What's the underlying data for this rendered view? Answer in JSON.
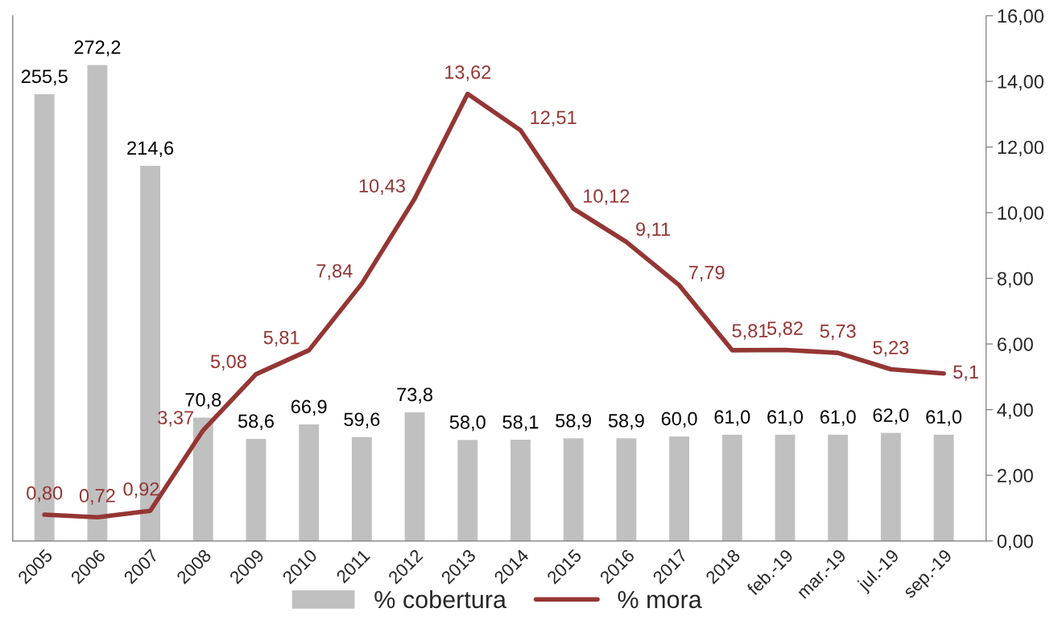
{
  "chart_data": {
    "type": "bar",
    "categories": [
      "2005",
      "2006",
      "2007",
      "2008",
      "2009",
      "2010",
      "2011",
      "2012",
      "2013",
      "2014",
      "2015",
      "2016",
      "2017",
      "2018",
      "feb.-19",
      "mar.-19",
      "jul.-19",
      "sep.-19"
    ],
    "series": [
      {
        "name": "% cobertura",
        "color": "#c0c0c0",
        "values": [
          255.5,
          272.2,
          214.6,
          70.8,
          58.6,
          66.9,
          59.6,
          73.8,
          58.0,
          58.1,
          58.9,
          58.9,
          60.0,
          61.0,
          61.0,
          61.0,
          62.0,
          61.0
        ],
        "value_labels": [
          "255,5",
          "272,2",
          "214,6",
          "70,8",
          "58,6",
          "66,9",
          "59,6",
          "73,8",
          "58,0",
          "58,1",
          "58,9",
          "58,9",
          "60,0",
          "61,0",
          "61,0",
          "61,0",
          "62,0",
          "61,0"
        ]
      },
      {
        "name": "% mora",
        "type": "line",
        "axis": "y2",
        "color": "#943634",
        "values": [
          0.8,
          0.72,
          0.92,
          3.37,
          5.08,
          5.81,
          7.84,
          10.43,
          13.62,
          12.51,
          10.12,
          9.11,
          7.79,
          5.81,
          5.82,
          5.73,
          5.23,
          5.1
        ],
        "value_labels": [
          "0,80",
          "0,72",
          "0,92",
          "3,37",
          "5,08",
          "5,81",
          "7,84",
          "10,43",
          "13,62",
          "12,51",
          "10,12",
          "9,11",
          "7,79",
          "5,81",
          "5,82",
          "5,73",
          "5,23",
          "5,1"
        ]
      }
    ],
    "ylim": [
      0,
      300
    ],
    "y2lim": [
      0,
      16
    ],
    "y2ticks": [
      {
        "value": 0,
        "label": "0,00"
      },
      {
        "value": 2,
        "label": "2,00"
      },
      {
        "value": 4,
        "label": "4,00"
      },
      {
        "value": 6,
        "label": "6,00"
      },
      {
        "value": 8,
        "label": "8,00"
      },
      {
        "value": 10,
        "label": "10,00"
      },
      {
        "value": 12,
        "label": "12,00"
      },
      {
        "value": 14,
        "label": "14,00"
      },
      {
        "value": 16,
        "label": "16,00"
      }
    ],
    "legend": "bottom",
    "grid": false,
    "marker": "none",
    "line_style": "solid"
  }
}
